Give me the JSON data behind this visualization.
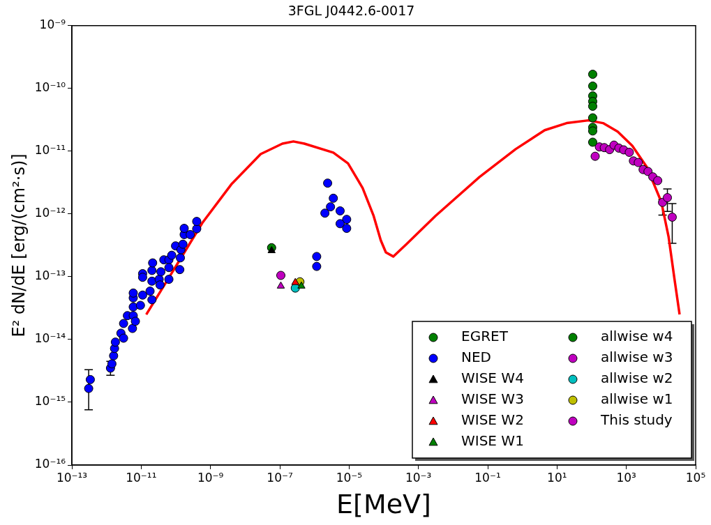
{
  "chart_data": {
    "type": "scatter",
    "title": "3FGL J0442.6-0017",
    "xlabel": "E[MeV]",
    "ylabel": "E² dN/dE [erg/(cm²·s)]",
    "log": "xy",
    "legend": "bottom right",
    "xlim": [
      1e-13,
      100000.0
    ],
    "ylim": [
      1e-16,
      1e-09
    ],
    "xticks": [
      {
        "value": 1e-13,
        "label": "10⁻¹³"
      },
      {
        "value": 1e-11,
        "label": "10⁻¹¹"
      },
      {
        "value": 1e-09,
        "label": "10⁻⁹"
      },
      {
        "value": 1e-07,
        "label": "10⁻⁷"
      },
      {
        "value": 1e-05,
        "label": "10⁻⁵"
      },
      {
        "value": 0.001,
        "label": "10⁻³"
      },
      {
        "value": 0.1,
        "label": "10⁻¹"
      },
      {
        "value": 10,
        "label": "10¹"
      },
      {
        "value": 1000,
        "label": "10³"
      },
      {
        "value": 100000,
        "label": "10⁵"
      }
    ],
    "yticks": [
      {
        "value": 1e-16,
        "label": "10⁻¹⁶"
      },
      {
        "value": 1e-15,
        "label": "10⁻¹⁵"
      },
      {
        "value": 1e-14,
        "label": "10⁻¹⁴"
      },
      {
        "value": 1e-13,
        "label": "10⁻¹³"
      },
      {
        "value": 1e-12,
        "label": "10⁻¹²"
      },
      {
        "value": 1e-11,
        "label": "10⁻¹¹"
      },
      {
        "value": 1e-10,
        "label": "10⁻¹⁰"
      },
      {
        "value": 1e-09,
        "label": "10⁻⁹"
      }
    ],
    "series": [
      {
        "type": "line",
        "marker": "none",
        "color": "#ff0000",
        "x": [
          1.4e-11,
          8.4e-11,
          5.8e-10,
          4e-09,
          2.8e-08,
          1.19e-07,
          2.47e-07,
          5.1e-07,
          3.5e-06,
          9.3e-06,
          2.45e-05,
          5.1e-05,
          8.2e-05,
          0.000115,
          0.000188,
          0.00045,
          0.0031,
          0.057,
          0.64,
          4.4,
          18.9,
          81,
          213,
          561,
          1480,
          3890,
          10200,
          16600,
          24500,
          34400
        ],
        "values": [
          2.5e-14,
          1.25e-13,
          7.2e-13,
          2.97e-12,
          9e-12,
          1.32e-11,
          1.43e-11,
          1.32e-11,
          9.5e-12,
          6.4e-12,
          2.6e-12,
          9.3e-13,
          3.8e-13,
          2.44e-13,
          2.1e-13,
          3.3e-13,
          9.3e-13,
          3.85e-12,
          1.08e-11,
          2.16e-11,
          2.8e-11,
          3.1e-11,
          2.8e-11,
          2.05e-11,
          1.22e-11,
          5.6e-12,
          1.56e-12,
          4.3e-13,
          9.2e-14,
          2.5e-14
        ]
      },
      {
        "name": "EGRET",
        "marker": "circle",
        "color": "#008000",
        "x": [
          107,
          107,
          107,
          107,
          107,
          107,
          107,
          107,
          107
        ],
        "values": [
          1.68e-10,
          1.09e-10,
          7.6e-11,
          6.2e-11,
          5.2e-11,
          3.4e-11,
          2.4e-11,
          2.1e-11,
          1.39e-11
        ]
      },
      {
        "name": "NED",
        "marker": "circle",
        "color": "#0000ff",
        "x": [
          3.05e-13,
          3.4e-13,
          1.3e-12,
          1.43e-12,
          1.6e-12,
          1.7e-12,
          1.8e-12,
          2.6e-12,
          3.1e-12,
          3.1e-12,
          4e-12,
          5.6e-12,
          5.9e-12,
          6.8e-12,
          5.9e-12,
          5.9e-12,
          5.9e-12,
          9.5e-12,
          1.1e-11,
          1.1e-11,
          1.1e-11,
          1.8e-11,
          2.04e-11,
          2.04e-11,
          2.04e-11,
          2.14e-11,
          3.3e-11,
          3.5e-11,
          3.7e-11,
          4.5e-11,
          6.3e-11,
          6.3e-11,
          6.3e-11,
          7.6e-11,
          9.8e-11,
          1.35e-10,
          1.3e-10,
          1.4e-10,
          1.6e-10,
          1.74e-10,
          1.74e-10,
          2.6e-10,
          4e-10,
          4e-10,
          2.4e-06,
          3.5e-06,
          2.9e-06,
          2e-06,
          5.5e-06,
          8.5e-06,
          5.5e-06,
          8.5e-06,
          1.16e-06,
          1.16e-06
        ],
        "values": [
          1.66e-15,
          2.3e-15,
          3.5e-15,
          4.1e-15,
          5.5e-15,
          7.2e-15,
          9.1e-15,
          1.26e-14,
          1.05e-14,
          1.8e-14,
          2.4e-14,
          1.5e-14,
          2.4e-14,
          1.95e-14,
          3.3e-14,
          4.6e-14,
          5.5e-14,
          3.5e-14,
          5.1e-14,
          1.12e-13,
          9.8e-14,
          5.9e-14,
          8.5e-14,
          4.3e-14,
          1.26e-13,
          1.66e-13,
          9.1e-14,
          7.4e-14,
          1.2e-13,
          1.86e-13,
          1.86e-13,
          1.4e-13,
          9.1e-14,
          2.2e-13,
          3.1e-13,
          2e-13,
          1.3e-13,
          2.7e-13,
          3.3e-13,
          4.7e-13,
          5.9e-13,
          4.7e-13,
          5.8e-13,
          7.6e-13,
          3.1e-12,
          1.78e-12,
          1.3e-12,
          1.03e-12,
          1.12e-12,
          8.2e-13,
          7e-13,
          5.9e-13,
          2.1e-13,
          1.46e-13
        ],
        "errors": [
          [
            7.6e-16,
            3.3e-15
          ],
          null,
          [
            2.7e-15,
            4.5e-15
          ],
          null,
          null,
          null,
          null,
          null,
          null,
          null,
          null,
          null,
          null,
          null,
          null,
          null,
          null,
          null,
          null,
          null,
          null,
          null,
          null,
          null,
          null,
          null,
          null,
          null,
          null,
          null,
          null,
          null,
          null,
          null,
          null,
          null,
          null,
          null,
          null,
          null,
          null,
          null,
          null,
          null,
          null,
          null,
          null,
          null,
          null,
          null,
          null,
          null,
          null,
          null
        ]
      },
      {
        "name": "WISE W4",
        "marker": "triangle",
        "color": "#000000",
        "x": [
          5.8e-08
        ],
        "values": [
          2.6e-13
        ]
      },
      {
        "name": "WISE W3",
        "marker": "triangle",
        "color": "#bf00bf",
        "x": [
          1.07e-07
        ],
        "values": [
          7.1e-14
        ]
      },
      {
        "name": "WISE W2",
        "marker": "triangle",
        "color": "#ff0000",
        "x": [
          2.8e-07
        ],
        "values": [
          8.1e-14
        ]
      },
      {
        "name": "WISE W1",
        "marker": "triangle",
        "color": "#008000",
        "x": [
          4.2e-07
        ],
        "values": [
          7.1e-14
        ]
      },
      {
        "name": "allwise w4",
        "marker": "circle",
        "color": "#008000",
        "x": [
          5.8e-08
        ],
        "values": [
          2.9e-13
        ]
      },
      {
        "name": "allwise w3",
        "marker": "circle",
        "color": "#bf00bf",
        "x": [
          1.07e-07
        ],
        "values": [
          1.05e-13
        ]
      },
      {
        "name": "allwise w2",
        "marker": "circle",
        "color": "#00bfbf",
        "x": [
          2.8e-07
        ],
        "values": [
          6.6e-14
        ]
      },
      {
        "name": "allwise w1",
        "marker": "circle",
        "color": "#bfbf00",
        "x": [
          3.8e-07
        ],
        "values": [
          8.3e-14
        ]
      },
      {
        "name": "This study",
        "marker": "circle",
        "color": "#bf00bf",
        "x": [
          126,
          167,
          231,
          329,
          440,
          608,
          837,
          1216,
          1600,
          2210,
          3050,
          4220,
          5800,
          8040,
          11100,
          15300,
          21100
        ],
        "values": [
          8.3e-12,
          1.17e-11,
          1.14e-11,
          1.06e-11,
          1.25e-11,
          1.12e-11,
          1.05e-11,
          9.6e-12,
          7e-12,
          6.6e-12,
          5.1e-12,
          4.75e-12,
          3.9e-12,
          3.4e-12,
          1.53e-12,
          1.82e-12,
          8.9e-13
        ],
        "errors": [
          null,
          null,
          null,
          null,
          null,
          null,
          null,
          null,
          null,
          null,
          null,
          null,
          null,
          null,
          [
            9.6e-13,
            1.7e-12
          ],
          [
            1.1e-12,
            2.5e-12
          ],
          [
            3.4e-13,
            1.46e-12
          ]
        ]
      }
    ]
  }
}
